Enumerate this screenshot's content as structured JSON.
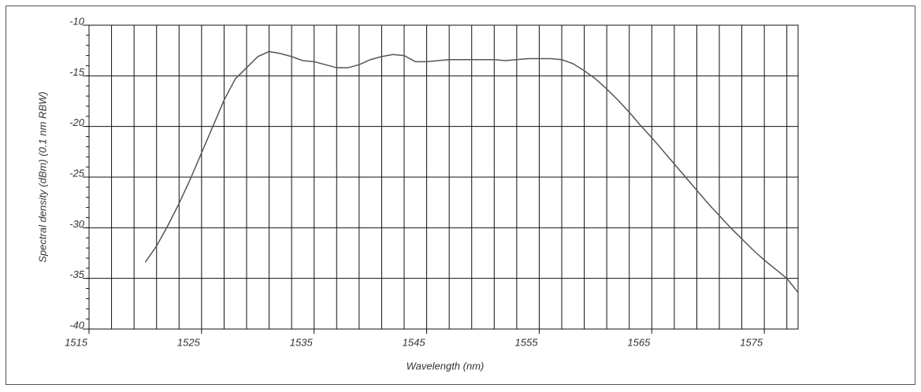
{
  "chart_data": {
    "type": "line",
    "x_label": "Wavelength (nm)",
    "y_label": "Spectral density (dBm) (0.1 nm RBW)",
    "xlim": [
      1515,
      1578
    ],
    "xticks": [
      1515,
      1525,
      1535,
      1545,
      1555,
      1565,
      1575
    ],
    "xgrid_step": 2,
    "ylim": [
      -40,
      -10
    ],
    "yticks": [
      -40,
      -35,
      -30,
      -25,
      -20,
      -15,
      -10
    ],
    "yminor_step": 1,
    "grid": true,
    "x": [
      1520,
      1521,
      1522,
      1523,
      1524,
      1525,
      1526,
      1527,
      1528,
      1529,
      1530,
      1531,
      1532,
      1533,
      1534,
      1535,
      1536,
      1537,
      1538,
      1539,
      1540,
      1541,
      1542,
      1543,
      1544,
      1545,
      1546,
      1547,
      1548,
      1549,
      1550,
      1551,
      1552,
      1553,
      1554,
      1555,
      1556,
      1557,
      1558,
      1559,
      1560,
      1561,
      1562,
      1563,
      1564,
      1565,
      1566,
      1567,
      1568,
      1569,
      1570,
      1571,
      1572,
      1573,
      1574,
      1575,
      1576,
      1577,
      1578
    ],
    "series": [
      {
        "color": "#555555",
        "values": [
          -33.4,
          -31.8,
          -29.8,
          -27.6,
          -25.2,
          -22.6,
          -20.0,
          -17.4,
          -15.3,
          -14.2,
          -13.1,
          -12.6,
          -12.8,
          -13.1,
          -13.5,
          -13.6,
          -13.9,
          -14.2,
          -14.2,
          -13.9,
          -13.4,
          -13.1,
          -12.9,
          -13.0,
          -13.6,
          -13.6,
          -13.5,
          -13.4,
          -13.4,
          -13.4,
          -13.4,
          -13.4,
          -13.5,
          -13.4,
          -13.3,
          -13.3,
          -13.3,
          -13.4,
          -13.8,
          -14.5,
          -15.3,
          -16.3,
          -17.4,
          -18.6,
          -19.9,
          -21.1,
          -22.4,
          -23.7,
          -25.0,
          -26.3,
          -27.6,
          -28.8,
          -30.0,
          -31.1,
          -32.2,
          -33.2,
          -34.1,
          -35.0,
          -36.4
        ]
      }
    ]
  }
}
